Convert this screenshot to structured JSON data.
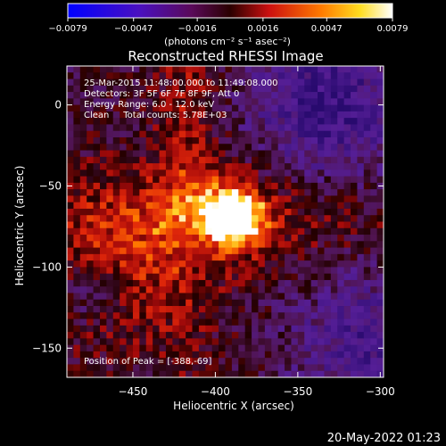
{
  "chart_data": {
    "type": "heatmap",
    "title": "Reconstructed RHESSI Image",
    "xlabel": "Heliocentric X (arcsec)",
    "ylabel": "Heliocentric Y (arcsec)",
    "xlim": [
      -490,
      -298
    ],
    "ylim": [
      -168,
      24
    ],
    "x_ticks": [
      -450,
      -400,
      -350,
      -300
    ],
    "x_tick_labels": [
      "−450",
      "−400",
      "−350",
      "−300"
    ],
    "y_ticks": [
      0,
      -50,
      -100,
      -150
    ],
    "y_tick_labels": [
      "0",
      "−50",
      "−100",
      "−150"
    ],
    "colorbar": {
      "ticks": [
        -0.0079,
        -0.0047,
        -0.0016,
        0.0016,
        0.0047,
        0.0079
      ],
      "tick_labels": [
        "−0.0079",
        "−0.0047",
        "−0.0016",
        "0.0016",
        "0.0047",
        "0.0079"
      ],
      "label": "(photons cm⁻² s⁻¹ asec⁻²)",
      "colormap": "rhessi-blue-purple-red-yellow-white"
    },
    "annotations": {
      "time": "25-Mar-2015 11:48:00.000 to 11:49:08.000",
      "detectors": "Detectors: 3F 5F 6F 7F 8F 9F, Att 0",
      "energy": "Energy Range: 6.0 - 12.0 keV",
      "clean": "Clean     Total counts: 5.78E+03",
      "peak": "Position of Peak = [-388,-69]"
    },
    "peak": {
      "x": -388,
      "y": -69
    }
  },
  "footer": {
    "date": "20-May-2022 01:23"
  }
}
